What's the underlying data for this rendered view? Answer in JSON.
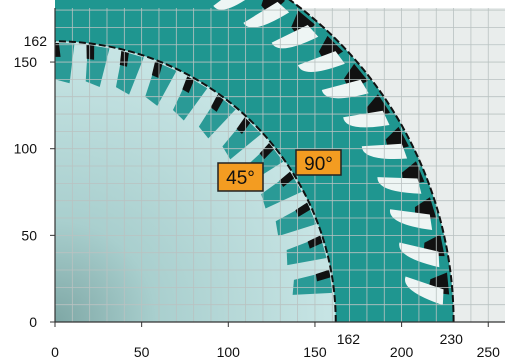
{
  "figure": {
    "x_axis": {
      "ticks": [
        "0",
        "50",
        "100",
        "150",
        "200",
        "250"
      ],
      "tick_values": [
        0,
        50,
        100,
        150,
        200,
        250
      ],
      "marked_values": [
        "162",
        "230"
      ]
    },
    "y_axis": {
      "ticks": [
        "0",
        "50",
        "100",
        "150"
      ],
      "tick_values": [
        0,
        50,
        100,
        150
      ],
      "marked_values": [
        "162"
      ]
    },
    "grid_step": 10,
    "blades": [
      {
        "name": "45°",
        "label": "45°",
        "radius": 162,
        "color": "#2a9a96",
        "teeth": 12
      },
      {
        "name": "90°",
        "label": "90°",
        "radius": 230,
        "color": "#1f9690",
        "teeth": 16
      }
    ],
    "colors": {
      "background": "#e9edec",
      "grid": "#b9c2c1",
      "blade_body": "#b9dcdb",
      "blade_ring": "#2a9a96",
      "tooth_tip": "#111111",
      "tag_fill": "#f39c21",
      "tag_border": "#222222"
    }
  }
}
